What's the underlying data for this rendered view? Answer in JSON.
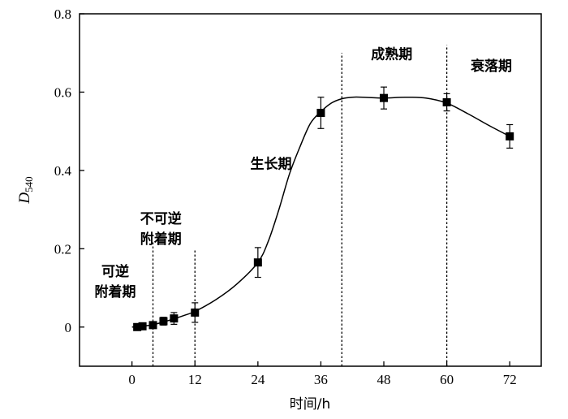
{
  "chart_data": {
    "type": "scatter",
    "title": "",
    "xlabel": "时间/h",
    "ylabel": {
      "main": "D",
      "sub": "540"
    },
    "xlim": [
      -10,
      78
    ],
    "ylim": [
      -0.1,
      0.8
    ],
    "xticks": [
      0,
      12,
      24,
      36,
      48,
      60,
      72
    ],
    "yticks": [
      0,
      0.2,
      0.4,
      0.6,
      0.8
    ],
    "ytick_labels": [
      "0",
      "0.2",
      "0.4",
      "0.6",
      "0.8"
    ],
    "grid": false,
    "series": [
      {
        "marker": "square",
        "x": [
          1,
          2,
          4,
          6,
          8,
          12,
          24,
          36,
          48,
          60,
          72
        ],
        "y": [
          0,
          0.002,
          0.005,
          0.015,
          0.022,
          0.037,
          0.165,
          0.547,
          0.585,
          0.574,
          0.487
        ],
        "yerr": [
          0.004,
          0.004,
          0.006,
          0.01,
          0.015,
          0.025,
          0.038,
          0.04,
          0.028,
          0.022,
          0.03
        ]
      }
    ],
    "fit_curve": {
      "x": [
        0,
        2,
        4,
        6,
        8,
        10,
        12,
        16,
        20,
        24,
        26,
        28,
        30,
        32,
        34,
        36,
        38,
        40,
        42,
        44,
        48,
        52,
        56,
        60,
        64,
        68,
        72
      ],
      "y": [
        0,
        0.002,
        0.006,
        0.013,
        0.021,
        0.03,
        0.04,
        0.07,
        0.11,
        0.165,
        0.22,
        0.3,
        0.39,
        0.46,
        0.52,
        0.55,
        0.572,
        0.583,
        0.587,
        0.587,
        0.585,
        0.587,
        0.585,
        0.572,
        0.545,
        0.515,
        0.487
      ]
    },
    "phase_boundaries": [
      {
        "x": 4,
        "y_top": 0.22
      },
      {
        "x": 12,
        "y_top": 0.2
      },
      {
        "x": 40,
        "y_top": 0.7
      },
      {
        "x": 60,
        "y_top": 0.72
      }
    ],
    "annotations": [
      {
        "lines": [
          "可逆",
          "附着期"
        ],
        "x": -3.2,
        "y": 0.13
      },
      {
        "lines": [
          "不可逆",
          "附着期"
        ],
        "x": 5.5,
        "y": 0.265
      },
      {
        "lines": [
          "生长期"
        ],
        "x": 26.5,
        "y": 0.405
      },
      {
        "lines": [
          "成熟期"
        ],
        "x": 49.5,
        "y": 0.685
      },
      {
        "lines": [
          "衰落期"
        ],
        "x": 68.5,
        "y": 0.655
      }
    ]
  }
}
